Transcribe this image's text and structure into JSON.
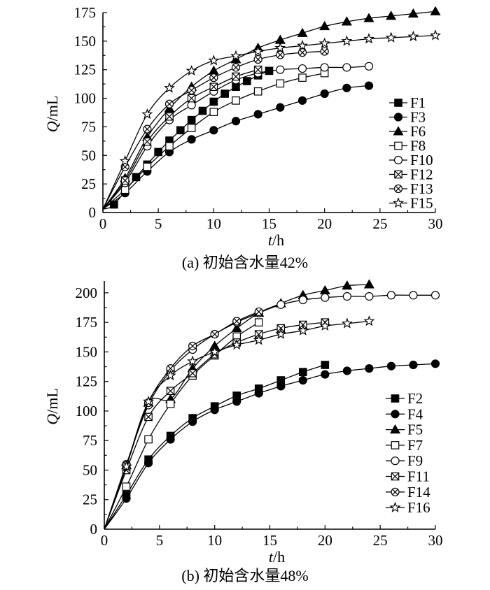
{
  "chart_data": [
    {
      "type": "line",
      "caption": "(a) 初始含水量42%",
      "xlabel_italic": "t",
      "xlabel_unit": "/h",
      "ylabel_italic": "Q",
      "ylabel_unit": "/mL",
      "xlim": [
        0,
        30
      ],
      "ylim": [
        0,
        175
      ],
      "xticks": [
        0,
        5,
        10,
        15,
        20,
        25,
        30
      ],
      "yticks": [
        0,
        25,
        50,
        75,
        100,
        125,
        150,
        175
      ],
      "grid": false,
      "legend_position": "right",
      "series": [
        {
          "name": "F1",
          "marker": "square-filled",
          "x": [
            0,
            1,
            3,
            4,
            5,
            6,
            7,
            8,
            9,
            10,
            11,
            12,
            13,
            14,
            15
          ],
          "y": [
            3,
            7,
            31,
            42,
            53,
            63,
            72,
            81,
            89,
            97,
            104,
            110,
            115,
            120,
            124
          ]
        },
        {
          "name": "F3",
          "marker": "circle-filled",
          "x": [
            0,
            2,
            4,
            6,
            8,
            10,
            12,
            14,
            16,
            18,
            20,
            22,
            24
          ],
          "y": [
            3,
            17,
            36,
            53,
            64,
            72,
            80,
            86,
            92,
            98,
            104,
            109,
            111
          ]
        },
        {
          "name": "F6",
          "marker": "triangle-filled",
          "x": [
            0,
            2,
            4,
            6,
            8,
            10,
            12,
            14,
            16,
            18,
            20,
            22,
            24,
            26,
            28,
            30
          ],
          "y": [
            3,
            30,
            66,
            91,
            110,
            124,
            134,
            144,
            151,
            157,
            163,
            167,
            170,
            172,
            174,
            176
          ]
        },
        {
          "name": "F8",
          "marker": "square-open",
          "x": [
            0,
            2,
            4,
            6,
            8,
            10,
            12,
            14,
            16,
            18,
            20
          ],
          "y": [
            3,
            20,
            40,
            58,
            74,
            88,
            98,
            106,
            113,
            118,
            122
          ]
        },
        {
          "name": "F10",
          "marker": "circle-open",
          "x": [
            0,
            2,
            4,
            6,
            8,
            10,
            12,
            14,
            16,
            18,
            20,
            22,
            24
          ],
          "y": [
            3,
            26,
            58,
            81,
            94,
            106,
            116,
            122,
            125,
            126,
            127,
            127,
            128
          ]
        },
        {
          "name": "F12",
          "marker": "square-cross",
          "x": [
            0,
            2,
            4,
            6,
            8,
            10,
            12,
            14
          ],
          "y": [
            3,
            28,
            62,
            84,
            100,
            110,
            119,
            125
          ]
        },
        {
          "name": "F13",
          "marker": "circle-cross",
          "x": [
            0,
            2,
            4,
            6,
            8,
            10,
            12,
            14,
            16,
            18,
            20
          ],
          "y": [
            3,
            40,
            73,
            95,
            107,
            118,
            127,
            134,
            138,
            140,
            141
          ]
        },
        {
          "name": "F15",
          "marker": "star-open",
          "x": [
            0,
            2,
            4,
            6,
            8,
            10,
            12,
            14,
            16,
            18,
            20,
            22,
            24,
            26,
            28,
            30
          ],
          "y": [
            3,
            45,
            86,
            109,
            124,
            133,
            137,
            141,
            144,
            146,
            148,
            150,
            152,
            153,
            154,
            155
          ]
        }
      ]
    },
    {
      "type": "line",
      "caption": "(b) 初始含水量48%",
      "xlabel_italic": "t",
      "xlabel_unit": "/h",
      "ylabel_italic": "Q",
      "ylabel_unit": "/mL",
      "xlim": [
        0,
        30
      ],
      "ylim": [
        0,
        210
      ],
      "xticks": [
        0,
        5,
        10,
        15,
        20,
        25,
        30
      ],
      "yticks": [
        0,
        25,
        50,
        75,
        100,
        125,
        150,
        175,
        200
      ],
      "grid": false,
      "legend_position": "bottom-right",
      "series": [
        {
          "name": "F2",
          "marker": "square-filled",
          "x": [
            0,
            2,
            4,
            6,
            8,
            10,
            12,
            14,
            16,
            18,
            20
          ],
          "y": [
            0,
            29,
            59,
            79,
            94,
            104,
            113,
            119,
            126,
            133,
            139
          ]
        },
        {
          "name": "F4",
          "marker": "circle-filled",
          "x": [
            0,
            2,
            4,
            6,
            8,
            10,
            12,
            14,
            16,
            18,
            20,
            22,
            24,
            26,
            28,
            30
          ],
          "y": [
            0,
            26,
            56,
            76,
            91,
            101,
            108,
            115,
            121,
            126,
            131,
            134,
            136,
            138,
            139,
            140
          ]
        },
        {
          "name": "F5",
          "marker": "triangle-filled",
          "x": [
            0,
            2,
            4,
            6,
            8,
            10,
            12,
            14,
            16,
            18,
            20,
            22,
            24
          ],
          "y": [
            0,
            54,
            107,
            110,
            136,
            155,
            170,
            183,
            191,
            198,
            202,
            206,
            207
          ]
        },
        {
          "name": "F7",
          "marker": "square-open",
          "x": [
            0,
            2,
            4,
            6,
            8,
            10,
            12,
            14
          ],
          "y": [
            0,
            36,
            76,
            106,
            130,
            147,
            163,
            175
          ]
        },
        {
          "name": "F9",
          "marker": "circle-open",
          "x": [
            0,
            2,
            4,
            6,
            8,
            10,
            12,
            14,
            16,
            18,
            20,
            22,
            24,
            26,
            28,
            30
          ],
          "y": [
            0,
            55,
            105,
            134,
            152,
            165,
            175,
            183,
            190,
            194,
            196,
            197,
            197,
            198,
            198,
            198
          ]
        },
        {
          "name": "F11",
          "marker": "square-cross",
          "x": [
            0,
            2,
            4,
            6,
            8,
            10,
            12,
            14,
            16,
            18,
            20
          ],
          "y": [
            0,
            50,
            95,
            117,
            132,
            148,
            158,
            165,
            170,
            173,
            175
          ]
        },
        {
          "name": "F14",
          "marker": "circle-cross",
          "x": [
            0,
            2,
            4,
            6,
            8,
            10,
            12,
            14
          ],
          "y": [
            0,
            54,
            107,
            136,
            155,
            165,
            176,
            184
          ]
        },
        {
          "name": "F16",
          "marker": "star-open",
          "x": [
            0,
            2,
            4,
            6,
            8,
            10,
            12,
            14,
            16,
            18,
            20,
            22,
            24
          ],
          "y": [
            0,
            53,
            108,
            130,
            142,
            150,
            156,
            160,
            165,
            168,
            172,
            174,
            176
          ]
        }
      ]
    }
  ]
}
